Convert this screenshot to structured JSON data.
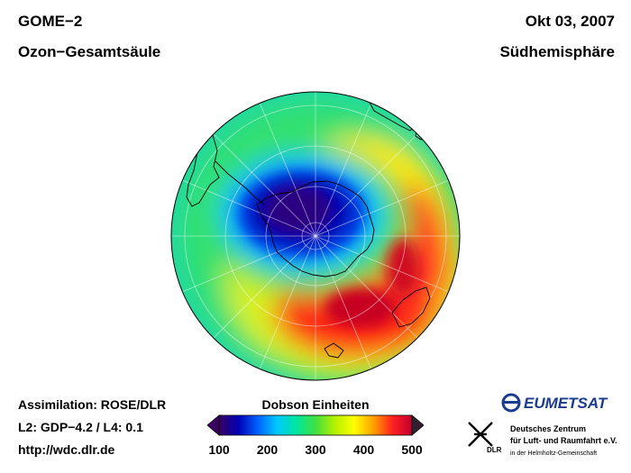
{
  "header": {
    "instrument": "GOME−2",
    "product": "Ozon−Gesamtsäule",
    "date": "Okt 03, 2007",
    "region": "Südhemisphäre"
  },
  "footer": {
    "assimilation": "Assimilation: ROSE/DLR",
    "version": "L2: GDP−4.2 / L4: 0.1",
    "url": "http://wdc.dlr.de"
  },
  "colorbar": {
    "title": "Dobson Einheiten",
    "ticks": [
      "100",
      "200",
      "300",
      "400",
      "500"
    ],
    "min": 100,
    "max": 500,
    "colors": [
      "#3a0060",
      "#0000b4",
      "#0060ff",
      "#00c8ff",
      "#00e6a0",
      "#40e040",
      "#b4f000",
      "#ffff00",
      "#ffa000",
      "#ff2020",
      "#c00030"
    ]
  },
  "logos": {
    "eumetsat": "EUMETSAT",
    "dlr_label": "DLR",
    "dlr_line1": "Deutsches Zentrum",
    "dlr_line2": "für Luft- und Raumfahrt e.V.",
    "dlr_line3": "in der Helmholtz-Gemeinschaft"
  },
  "map": {
    "projection": "polar-stereographic-south",
    "ozone_hole_min_du": 120,
    "max_du": 460
  }
}
